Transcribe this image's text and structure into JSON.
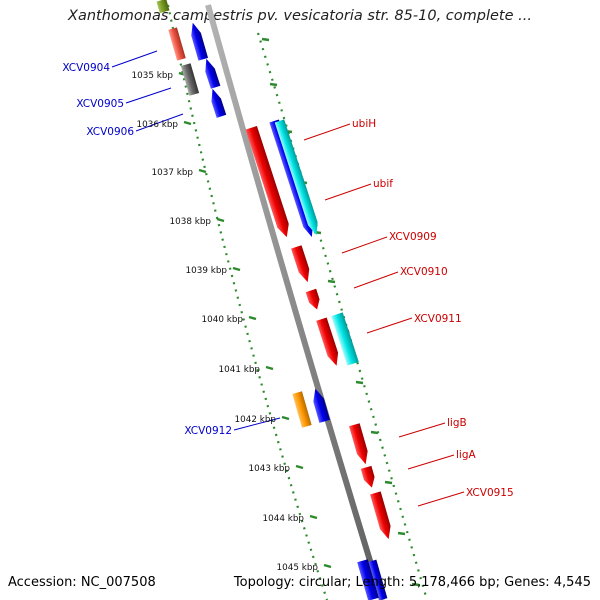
{
  "title": "Xanthomonas campestris pv. vesicatoria str. 85-10, complete ...",
  "footer": {
    "accession": "Accession: NC_007508",
    "summary": "Topology: circular; Length: 5,178,466 bp; Genes: 4,545"
  },
  "colors": {
    "backbone": "#8c8c8c",
    "tick": "#2e8a2e",
    "forward_label": "#0000cc",
    "reverse_label": "#cc0000",
    "red": "#ee0000",
    "blue": "#0000ee",
    "cyan": "#00dddd",
    "orange": "#ff9900",
    "gray": "#666666",
    "salmon": "#ee6655",
    "olive": "#779922"
  },
  "scale_labels": [
    "1035 kbp",
    "1036 kbp",
    "1037 kbp",
    "1038 kbp",
    "1039 kbp",
    "1040 kbp",
    "1041 kbp",
    "1042 kbp",
    "1043 kbp",
    "1044 kbp",
    "1045 kbp"
  ],
  "forward_gene_labels": [
    "XCV0904",
    "XCV0905",
    "XCV0906",
    "XCV0912"
  ],
  "reverse_gene_labels": [
    "ubiH",
    "ubif",
    "XCV0909",
    "XCV0910",
    "XCV0911",
    "ligB",
    "ligA",
    "XCV0915"
  ]
}
